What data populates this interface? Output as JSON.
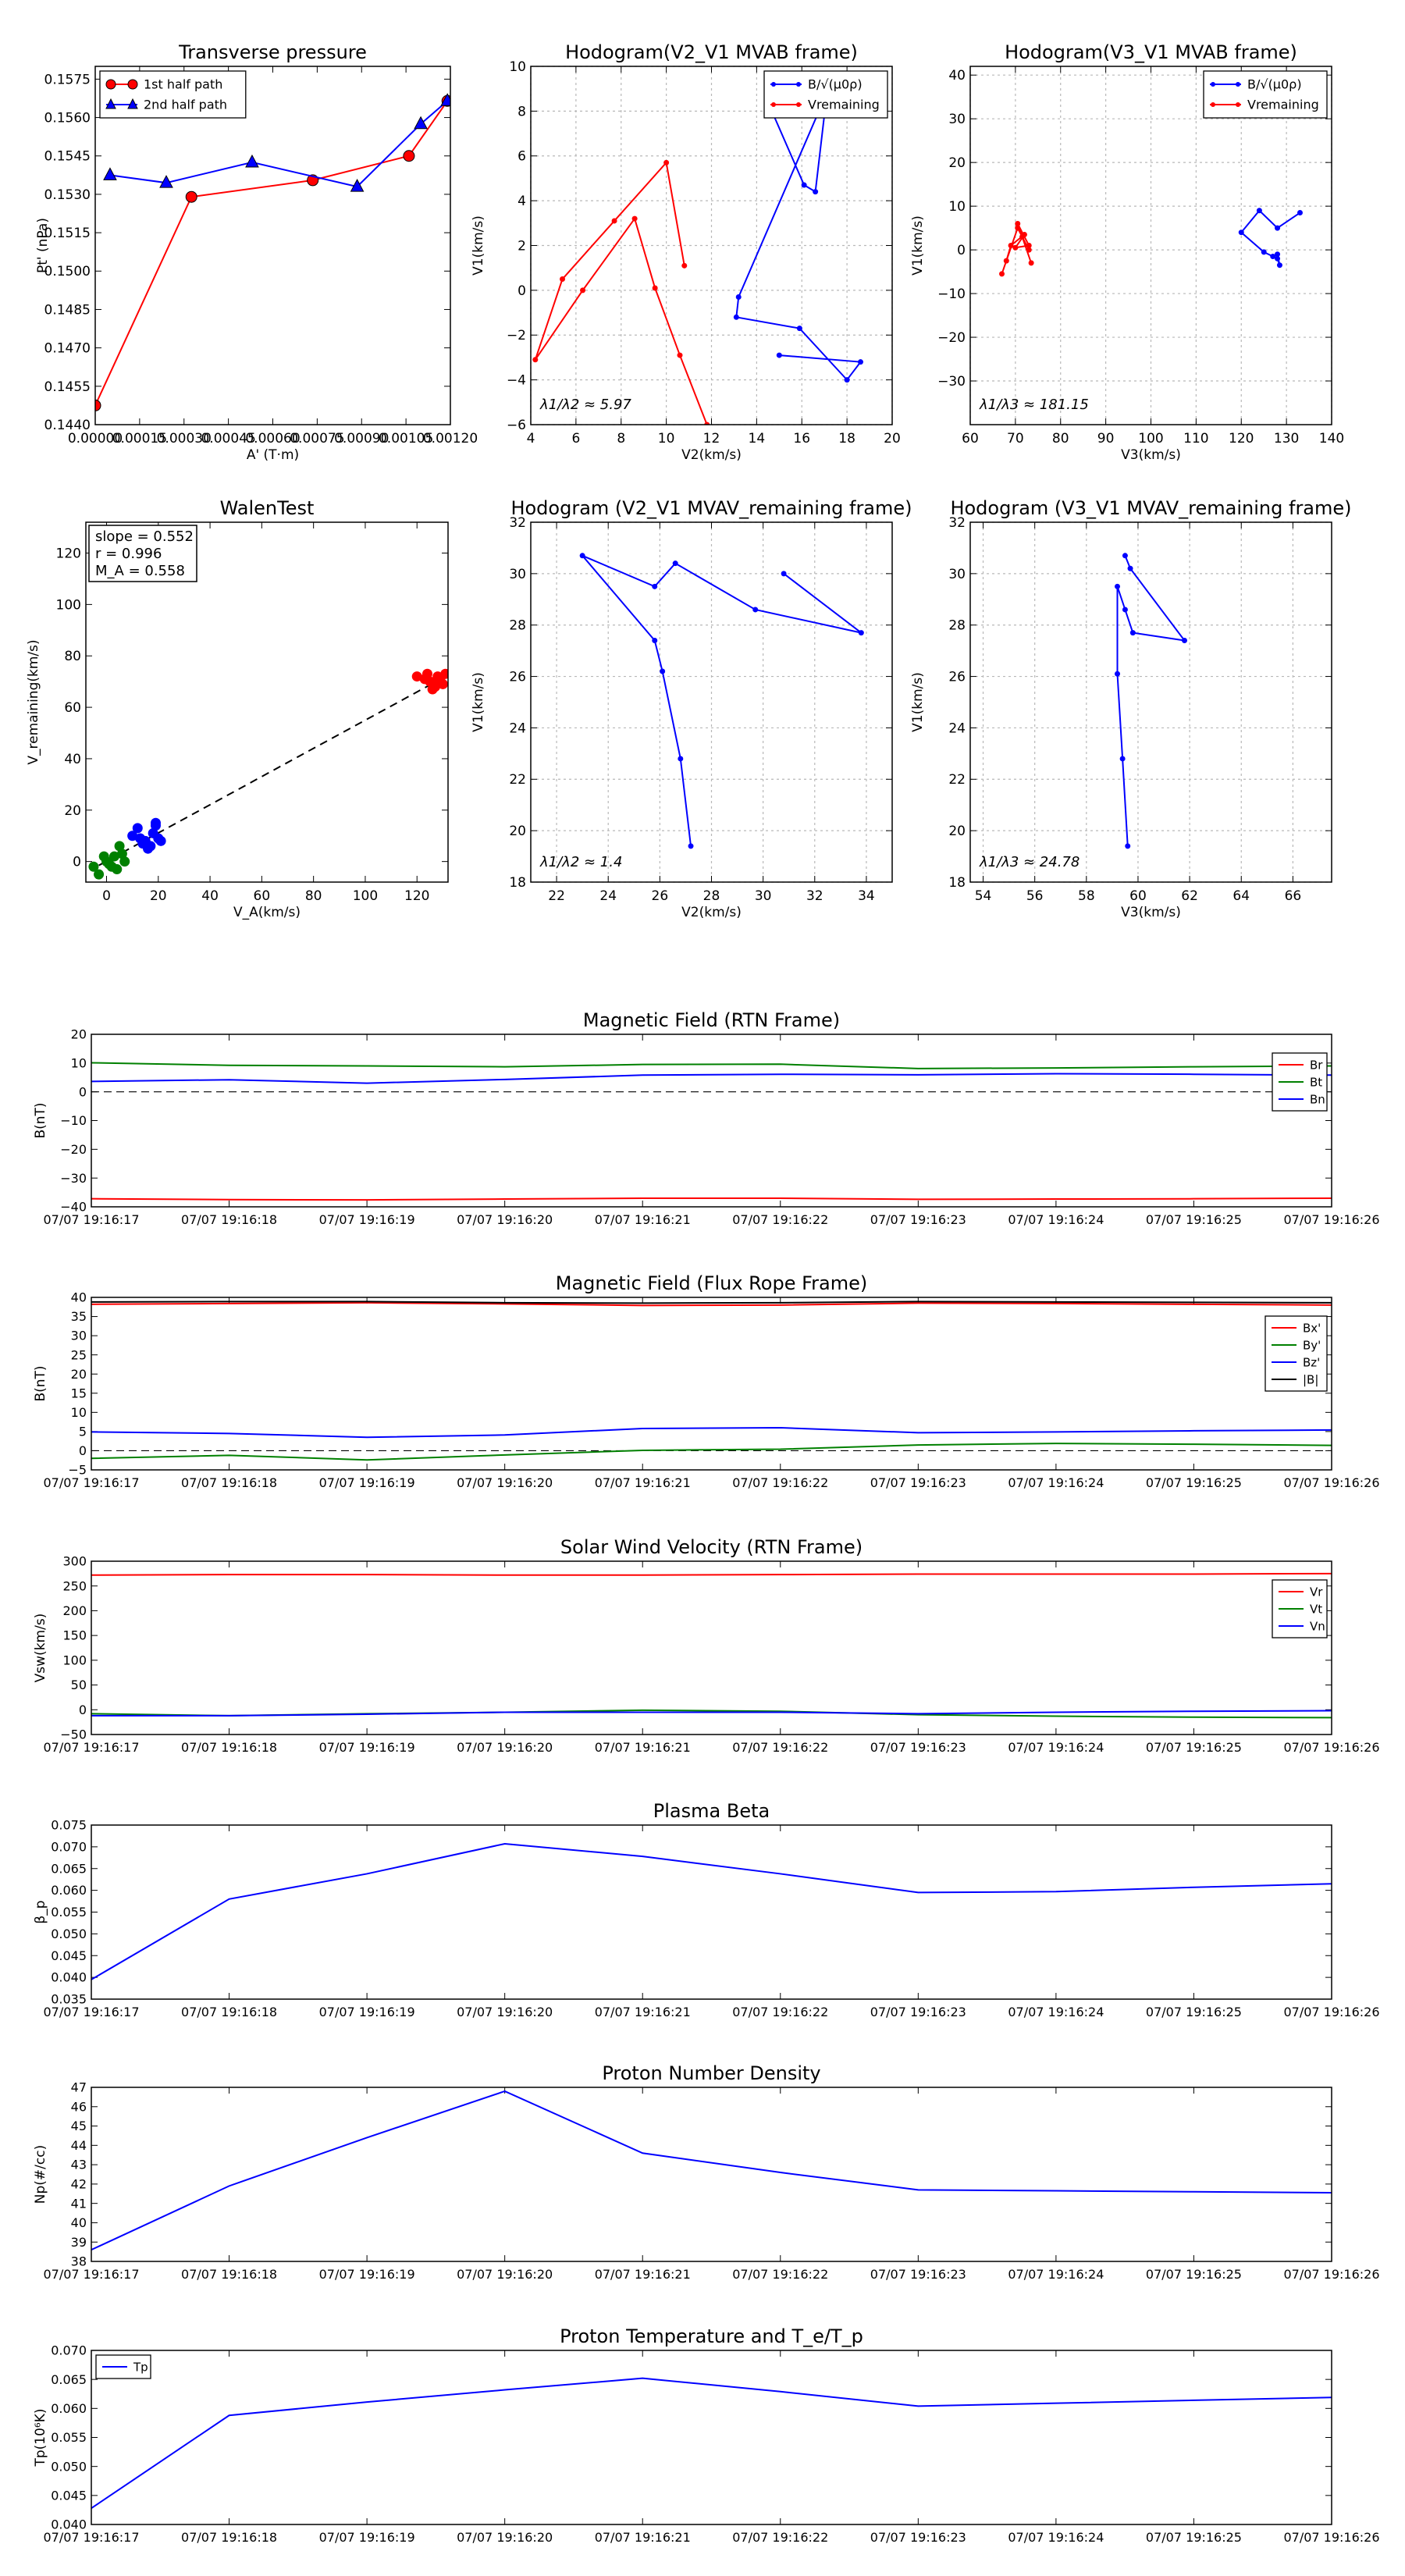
{
  "colors": {
    "red": "#ff0000",
    "blue": "#0000ff",
    "green": "#008000",
    "black": "#000000",
    "grid": "#b8b8b8"
  },
  "time_ticks": [
    "07/07 19:16:17",
    "07/07 19:16:18",
    "07/07 19:16:19",
    "07/07 19:16:20",
    "07/07 19:16:21",
    "07/07 19:16:22",
    "07/07 19:16:23",
    "07/07 19:16:24",
    "07/07 19:16:25",
    "07/07 19:16:26"
  ],
  "chart_data": [
    {
      "id": "tp",
      "type": "line",
      "title": "Transverse pressure",
      "xlabel": "A' (T·m)",
      "ylabel": "Pt' (nPa)",
      "xlim": [
        0,
        0.0012
      ],
      "ylim": [
        0.144,
        0.158
      ],
      "grid": false,
      "xticks": [
        0,
        0.00015,
        0.0003,
        0.00045,
        0.0006,
        0.00075,
        0.0009,
        0.00105,
        0.0012
      ],
      "xtick_labels": [
        "0.00000",
        "0.00015",
        "0.00030",
        "0.00045",
        "0.00060",
        "0.00075",
        "0.00090",
        "0.00105",
        "0.00120"
      ],
      "yticks": [
        0.144,
        0.1455,
        0.147,
        0.1485,
        0.15,
        0.1515,
        0.153,
        0.1545,
        0.156,
        0.1575
      ],
      "ytick_labels": [
        "0.1440",
        "0.1455",
        "0.1470",
        "0.1485",
        "0.1500",
        "0.1515",
        "0.1530",
        "0.1545",
        "0.1560",
        "0.1575"
      ],
      "legend": "top-left",
      "series": [
        {
          "name": "1st half path",
          "color": "red",
          "marker": "circle",
          "x": [
            0.0,
            0.000325,
            0.000735,
            0.00106,
            0.00119
          ],
          "y": [
            0.14475,
            0.1529,
            0.15355,
            0.1545,
            0.15665
          ]
        },
        {
          "name": "2nd half path",
          "color": "blue",
          "marker": "triangle",
          "x": [
            5e-05,
            0.00024,
            0.00053,
            0.000885,
            0.0011,
            0.00119
          ],
          "y": [
            0.15375,
            0.15345,
            0.15425,
            0.1533,
            0.15575,
            0.15665
          ]
        }
      ]
    },
    {
      "id": "h21",
      "type": "line",
      "title": "Hodogram(V2_V1 MVAB frame)",
      "xlabel": "V2(km/s)",
      "ylabel": "V1(km/s)",
      "xlim": [
        4,
        20
      ],
      "ylim": [
        -6,
        10
      ],
      "grid": true,
      "xticks": [
        4,
        6,
        8,
        10,
        12,
        14,
        16,
        18,
        20
      ],
      "xtick_labels": [
        "4",
        "6",
        "8",
        "10",
        "12",
        "14",
        "16",
        "18",
        "20"
      ],
      "yticks": [
        -6,
        -4,
        -2,
        0,
        2,
        4,
        6,
        8,
        10
      ],
      "ytick_labels": [
        "−6",
        "−4",
        "−2",
        "0",
        "2",
        "4",
        "6",
        "8",
        "10"
      ],
      "legend": "top-right",
      "annotation": "λ1/λ2 ≈ 5.97",
      "series": [
        {
          "name": "B/√(μ0ρ)",
          "color": "blue",
          "x": [
            14.5,
            16.1,
            16.6,
            17.1,
            17.1,
            13.2,
            13.1,
            15.9,
            18.0,
            18.6,
            15.0
          ],
          "y": [
            8.4,
            4.7,
            4.4,
            8.7,
            8.8,
            -0.3,
            -1.2,
            -1.7,
            -4.0,
            -3.2,
            -2.9
          ]
        },
        {
          "name": "Vremaining",
          "color": "red",
          "x": [
            10.8,
            10.0,
            7.7,
            5.4,
            4.2,
            6.3,
            8.6,
            9.5,
            10.6,
            11.8
          ],
          "y": [
            1.1,
            5.7,
            3.1,
            0.5,
            -3.1,
            0.0,
            3.2,
            0.1,
            -2.9,
            -6.0
          ]
        }
      ]
    },
    {
      "id": "h31",
      "type": "line",
      "title": "Hodogram(V3_V1 MVAB frame)",
      "xlabel": "V3(km/s)",
      "ylabel": "V1(km/s)",
      "xlim": [
        60,
        140
      ],
      "ylim": [
        -40,
        42
      ],
      "grid": true,
      "xticks": [
        60,
        70,
        80,
        90,
        100,
        110,
        120,
        130,
        140
      ],
      "xtick_labels": [
        "60",
        "70",
        "80",
        "90",
        "100",
        "110",
        "120",
        "130",
        "140"
      ],
      "yticks": [
        -30,
        -20,
        -10,
        0,
        10,
        20,
        30,
        40
      ],
      "ytick_labels": [
        "−30",
        "−20",
        "−10",
        "0",
        "10",
        "20",
        "30",
        "40"
      ],
      "legend": "top-right",
      "annotation": "λ1/λ3 ≈ 181.15",
      "series": [
        {
          "name": "B/√(μ0ρ)",
          "color": "blue",
          "x": [
            133,
            128,
            124,
            120,
            125,
            127,
            128,
            128.5,
            128
          ],
          "y": [
            8.5,
            5.0,
            9.0,
            4.0,
            -0.5,
            -1.5,
            -2.0,
            -3.5,
            -1.0
          ]
        },
        {
          "name": "Vremaining",
          "color": "red",
          "x": [
            73.5,
            71.5,
            70.5,
            73,
            70,
            72,
            69,
            68,
            67,
            70.5,
            73
          ],
          "y": [
            -3,
            3,
            6,
            1,
            0.5,
            3.5,
            1,
            -2.5,
            -5.5,
            5,
            0
          ]
        }
      ]
    },
    {
      "id": "walen",
      "type": "scatter",
      "title": "WalenTest",
      "xlabel": "V_A(km/s)",
      "ylabel": "V_remaining(km/s)",
      "xlim": [
        -8,
        132
      ],
      "ylim": [
        -8,
        132
      ],
      "grid": false,
      "xticks": [
        0,
        20,
        40,
        60,
        80,
        100,
        120
      ],
      "xtick_labels": [
        "0",
        "20",
        "40",
        "60",
        "80",
        "100",
        "120"
      ],
      "yticks": [
        0,
        20,
        40,
        60,
        80,
        100,
        120
      ],
      "ytick_labels": [
        "0",
        "20",
        "40",
        "60",
        "80",
        "100",
        "120"
      ],
      "legend_box": [
        "slope = 0.552",
        "r = 0.996",
        "M_A = 0.558"
      ],
      "fit_line": {
        "x": [
          -3,
          131
        ],
        "y": [
          -1.5,
          72
        ]
      },
      "series": [
        {
          "name": "green",
          "color": "green",
          "x": [
            -5,
            -3,
            0,
            3,
            5,
            7,
            4,
            1,
            -1,
            2,
            6
          ],
          "y": [
            -2,
            -5,
            0,
            2,
            6,
            0,
            -3,
            -1,
            2,
            -2,
            3
          ]
        },
        {
          "name": "blue",
          "color": "blue",
          "x": [
            10,
            12,
            15,
            17,
            19,
            20,
            14,
            16,
            18,
            13,
            19,
            21
          ],
          "y": [
            10,
            13,
            8,
            6,
            14,
            9,
            7,
            5,
            11,
            9,
            15,
            8
          ]
        },
        {
          "name": "red",
          "color": "red",
          "x": [
            120,
            123,
            125,
            127,
            128,
            130,
            124,
            126,
            129,
            127,
            131
          ],
          "y": [
            72,
            71,
            70,
            68,
            72,
            69,
            73,
            67,
            71,
            70,
            73
          ]
        }
      ]
    },
    {
      "id": "hr21",
      "type": "line",
      "title": "Hodogram (V2_V1 MVAV_remaining frame)",
      "xlabel": "V2(km/s)",
      "ylabel": "V1(km/s)",
      "xlim": [
        21,
        35
      ],
      "ylim": [
        18,
        32
      ],
      "grid": true,
      "xticks": [
        22,
        24,
        26,
        28,
        30,
        32,
        34
      ],
      "xtick_labels": [
        "22",
        "24",
        "26",
        "28",
        "30",
        "32",
        "34"
      ],
      "yticks": [
        18,
        20,
        22,
        24,
        26,
        28,
        30,
        32
      ],
      "ytick_labels": [
        "18",
        "20",
        "22",
        "24",
        "26",
        "28",
        "30",
        "32"
      ],
      "annotation": "λ1/λ2 ≈ 1.4",
      "series": [
        {
          "name": "trace",
          "color": "blue",
          "x": [
            27.2,
            26.8,
            26.1,
            25.8,
            23.0,
            25.8,
            26.6,
            29.7,
            33.8,
            30.8
          ],
          "y": [
            19.4,
            22.8,
            26.2,
            27.4,
            30.7,
            29.5,
            30.4,
            28.6,
            27.7,
            30.0
          ]
        }
      ]
    },
    {
      "id": "hr31",
      "type": "line",
      "title": "Hodogram (V3_V1 MVAV_remaining frame)",
      "xlabel": "V3(km/s)",
      "ylabel": "V1(km/s)",
      "xlim": [
        53.5,
        67.5
      ],
      "ylim": [
        18,
        32
      ],
      "grid": true,
      "xticks": [
        54,
        56,
        58,
        60,
        62,
        64,
        66
      ],
      "xtick_labels": [
        "54",
        "56",
        "58",
        "60",
        "62",
        "64",
        "66"
      ],
      "yticks": [
        18,
        20,
        22,
        24,
        26,
        28,
        30,
        32
      ],
      "ytick_labels": [
        "18",
        "20",
        "22",
        "24",
        "26",
        "28",
        "30",
        "32"
      ],
      "annotation": "λ1/λ3 ≈ 24.78",
      "series": [
        {
          "name": "trace",
          "color": "blue",
          "x": [
            59.6,
            59.4,
            59.2,
            59.2,
            59.5,
            59.8,
            61.8,
            59.7,
            59.5
          ],
          "y": [
            19.4,
            22.8,
            26.1,
            29.5,
            28.6,
            27.7,
            27.4,
            30.2,
            30.7
          ]
        }
      ]
    },
    {
      "id": "mag_rtn",
      "type": "line",
      "title": "Magnetic Field (RTN Frame)",
      "ylabel": "B(nT)",
      "ylim": [
        -40,
        20
      ],
      "grid": false,
      "zero_line": true,
      "legend": "top-right",
      "yticks": [
        -40,
        -30,
        -20,
        -10,
        0,
        10,
        20
      ],
      "ytick_labels": [
        "−40",
        "−30",
        "−20",
        "−10",
        "0",
        "10",
        "20"
      ],
      "series": [
        {
          "name": "Br",
          "color": "red",
          "values": [
            -37.2,
            -37.5,
            -37.6,
            -37.3,
            -37.0,
            -37.0,
            -37.4,
            -37.3,
            -37.2,
            -37.0
          ]
        },
        {
          "name": "Bt",
          "color": "green",
          "values": [
            10.1,
            9.2,
            9.0,
            8.7,
            9.5,
            9.6,
            8.1,
            8.3,
            8.7,
            9.0
          ]
        },
        {
          "name": "Bn",
          "color": "blue",
          "values": [
            3.6,
            4.2,
            3.0,
            4.3,
            5.8,
            6.1,
            5.9,
            6.3,
            6.1,
            5.8
          ]
        }
      ]
    },
    {
      "id": "mag_fr",
      "type": "line",
      "title": "Magnetic Field (Flux Rope Frame)",
      "ylabel": "B(nT)",
      "ylim": [
        -5,
        40
      ],
      "grid": false,
      "zero_line": true,
      "legend": "top-right",
      "yticks": [
        -5,
        0,
        5,
        10,
        15,
        20,
        25,
        30,
        35,
        40
      ],
      "ytick_labels": [
        "−5",
        "0",
        "5",
        "10",
        "15",
        "20",
        "25",
        "30",
        "35",
        "40"
      ],
      "series": [
        {
          "name": "Bx'",
          "color": "red",
          "values": [
            38.2,
            38.4,
            38.6,
            38.3,
            37.9,
            38.0,
            38.5,
            38.4,
            38.2,
            38.0
          ]
        },
        {
          "name": "By'",
          "color": "green",
          "values": [
            -2.0,
            -1.2,
            -2.4,
            -1.1,
            0.1,
            0.4,
            1.5,
            1.9,
            1.7,
            1.4
          ]
        },
        {
          "name": "Bz'",
          "color": "blue",
          "values": [
            4.9,
            4.5,
            3.5,
            4.1,
            5.8,
            6.0,
            4.7,
            4.9,
            5.2,
            5.4
          ]
        },
        {
          "name": "|B|",
          "color": "black",
          "values": [
            38.8,
            38.9,
            38.9,
            38.6,
            38.5,
            38.6,
            38.9,
            38.8,
            38.7,
            38.6
          ]
        }
      ]
    },
    {
      "id": "vsw",
      "type": "line",
      "title": "Solar Wind Velocity (RTN Frame)",
      "ylabel": "Vsw(km/s)",
      "ylim": [
        -50,
        300
      ],
      "grid": false,
      "legend": "top-right",
      "yticks": [
        -50,
        0,
        50,
        100,
        150,
        200,
        250,
        300
      ],
      "ytick_labels": [
        "−50",
        "0",
        "50",
        "100",
        "150",
        "200",
        "250",
        "300"
      ],
      "series": [
        {
          "name": "Vr",
          "color": "red",
          "values": [
            272,
            273,
            273,
            272,
            272,
            273,
            274,
            274,
            274,
            275
          ]
        },
        {
          "name": "Vt",
          "color": "green",
          "values": [
            -8,
            -12,
            -8,
            -5,
            -1,
            -3,
            -10,
            -13,
            -15,
            -16
          ]
        },
        {
          "name": "Vn",
          "color": "blue",
          "values": [
            -12,
            -12,
            -9,
            -5,
            -5,
            -5,
            -8,
            -5,
            -3,
            -2
          ]
        }
      ]
    },
    {
      "id": "beta",
      "type": "line",
      "title": "Plasma Beta",
      "ylabel": "β_p",
      "ylim": [
        0.035,
        0.075
      ],
      "grid": false,
      "yticks": [
        0.035,
        0.04,
        0.045,
        0.05,
        0.055,
        0.06,
        0.065,
        0.07,
        0.075
      ],
      "ytick_labels": [
        "0.035",
        "0.040",
        "0.045",
        "0.050",
        "0.055",
        "0.060",
        "0.065",
        "0.070",
        "0.075"
      ],
      "series": [
        {
          "name": "beta",
          "color": "blue",
          "values": [
            0.0395,
            0.058,
            0.0638,
            0.0707,
            0.0678,
            0.0638,
            0.0595,
            0.0597,
            0.0607,
            0.0615
          ]
        }
      ]
    },
    {
      "id": "np",
      "type": "line",
      "title": "Proton Number Density",
      "ylabel": "Np(#/cc)",
      "ylim": [
        38,
        47
      ],
      "grid": false,
      "yticks": [
        38,
        39,
        40,
        41,
        42,
        43,
        44,
        45,
        46,
        47
      ],
      "ytick_labels": [
        "38",
        "39",
        "40",
        "41",
        "42",
        "43",
        "44",
        "45",
        "46",
        "47"
      ],
      "series": [
        {
          "name": "Np",
          "color": "blue",
          "values": [
            38.6,
            41.9,
            44.4,
            46.8,
            43.6,
            42.6,
            41.7,
            41.65,
            41.6,
            41.55
          ]
        }
      ]
    },
    {
      "id": "tpr",
      "type": "line",
      "title": "Proton Temperature and T_e/T_p",
      "ylabel": "Tp(10⁶K)",
      "ylim": [
        0.04,
        0.07
      ],
      "grid": false,
      "legend": "top-left",
      "yticks": [
        0.04,
        0.045,
        0.05,
        0.055,
        0.06,
        0.065,
        0.07
      ],
      "ytick_labels": [
        "0.040",
        "0.045",
        "0.050",
        "0.055",
        "0.060",
        "0.065",
        "0.070"
      ],
      "series": [
        {
          "name": "Tp",
          "color": "blue",
          "values": [
            0.0428,
            0.0588,
            0.0611,
            0.0632,
            0.0652,
            0.0629,
            0.0604,
            0.0609,
            0.0614,
            0.0619
          ]
        }
      ]
    }
  ]
}
